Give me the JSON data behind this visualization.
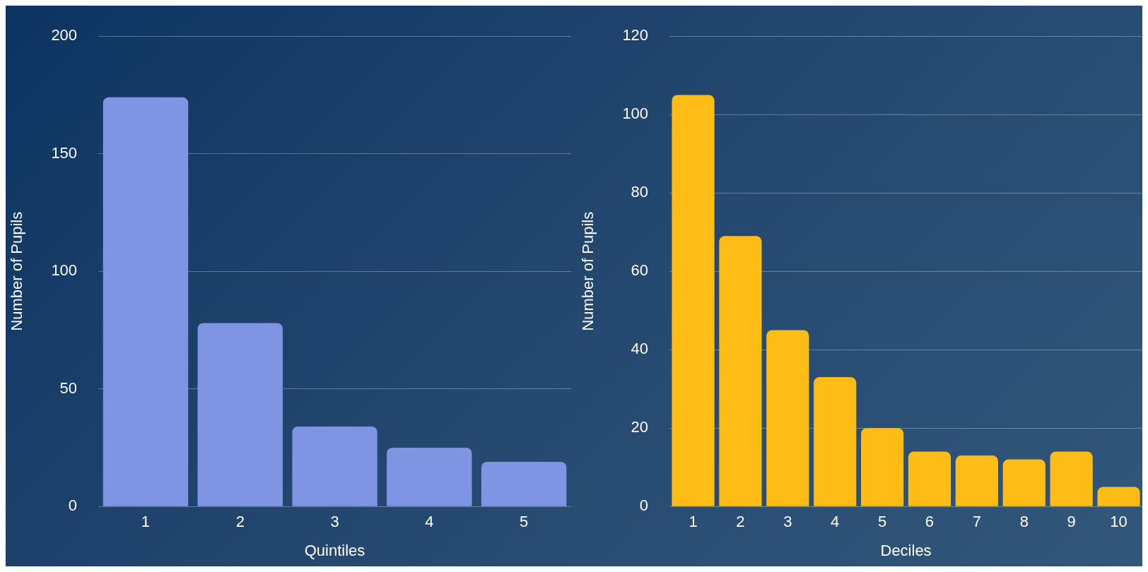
{
  "chart_data": [
    {
      "type": "bar",
      "xlabel": "Quintiles",
      "ylabel": "Number of Pupils",
      "categories": [
        "1",
        "2",
        "3",
        "4",
        "5"
      ],
      "values": [
        174,
        78,
        34,
        25,
        19
      ],
      "color": "#8094e4",
      "ylim": [
        0,
        200
      ],
      "yticks": [
        0,
        50,
        100,
        150,
        200
      ],
      "grid": "y"
    },
    {
      "type": "bar",
      "xlabel": "Deciles",
      "ylabel": "Number of Pupils",
      "categories": [
        "1",
        "2",
        "3",
        "4",
        "5",
        "6",
        "7",
        "8",
        "9",
        "10"
      ],
      "values": [
        105,
        69,
        45,
        33,
        20,
        14,
        13,
        12,
        14,
        5
      ],
      "color": "#fdbd16",
      "ylim": [
        0,
        120
      ],
      "yticks": [
        0,
        20,
        40,
        60,
        80,
        100,
        120
      ],
      "grid": "y"
    }
  ]
}
